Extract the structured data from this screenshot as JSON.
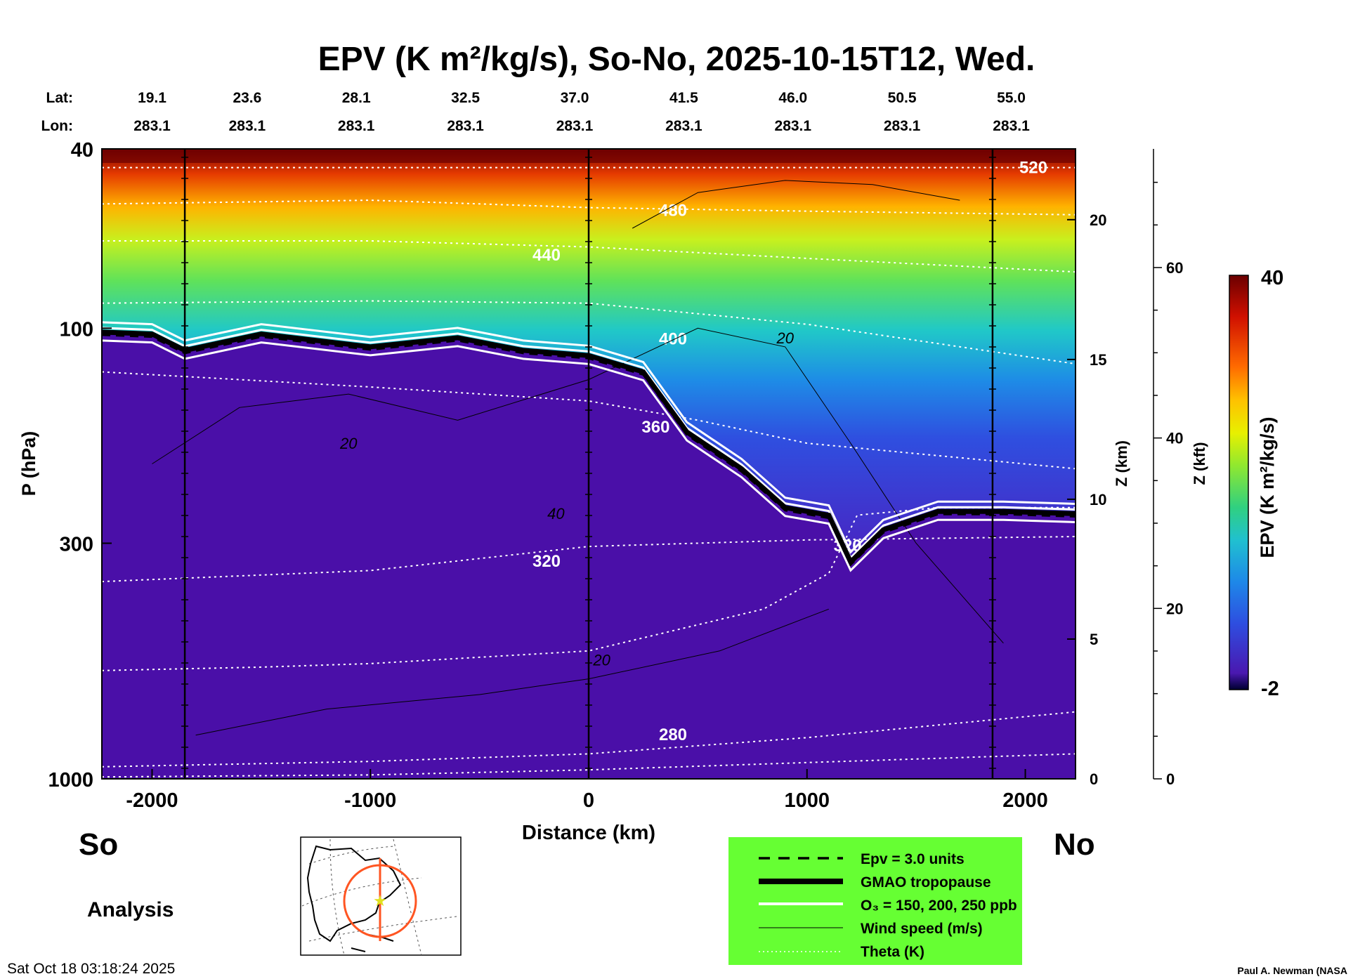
{
  "chart_data": {
    "type": "heatmap",
    "title": "EPV (K m²/kg/s), So-No, 2025-10-15T12, Wed.",
    "xlabel": "Distance (km)",
    "ylabel": "P (hPa)",
    "z_km_label": "Z (km)",
    "z_kft_label": "Z (kft)",
    "colorbar_label": "EPV (K m²/kg/s)",
    "xlim": [
      -2230,
      2230
    ],
    "ylim": [
      1000,
      40
    ],
    "x_ticks": [
      -2000,
      -1000,
      0,
      1000,
      2000
    ],
    "x_tick_labels": [
      "-2000",
      "-1000",
      "0",
      "1000",
      "2000"
    ],
    "p_ticks": [
      40,
      100,
      300,
      1000
    ],
    "p_tick_labels": [
      "40",
      "100",
      "300",
      "1000"
    ],
    "z_km_ticks": [
      0,
      5,
      10,
      15,
      20
    ],
    "z_km_tick_labels": [
      "0",
      "5",
      "10",
      "15",
      "20"
    ],
    "z_kft_ticks": [
      0,
      20,
      40,
      60
    ],
    "z_kft_tick_labels": [
      "0",
      "20",
      "40",
      "60"
    ],
    "colorbar_range": [
      -2,
      40
    ],
    "colorbar_tick_labels": [
      "40",
      "-2"
    ],
    "lat_label": "Lat:",
    "lon_label": "Lon:",
    "location_ticks": [
      {
        "lat": "19.1",
        "lon": "283.1"
      },
      {
        "lat": "23.6",
        "lon": "283.1"
      },
      {
        "lat": "28.1",
        "lon": "283.1"
      },
      {
        "lat": "32.5",
        "lon": "283.1"
      },
      {
        "lat": "37.0",
        "lon": "283.1"
      },
      {
        "lat": "41.5",
        "lon": "283.1"
      },
      {
        "lat": "46.0",
        "lon": "283.1"
      },
      {
        "lat": "50.5",
        "lon": "283.1"
      },
      {
        "lat": "55.0",
        "lon": "283.1"
      }
    ],
    "vertical_marker_lines_km": [
      -1850,
      0,
      1850
    ],
    "tropopause": {
      "x": [
        -2230,
        -2000,
        -1850,
        -1500,
        -1000,
        -600,
        -300,
        0,
        250,
        450,
        700,
        900,
        1100,
        1200,
        1350,
        1600,
        1900,
        2230
      ],
      "p": [
        102,
        103,
        112,
        103,
        110,
        105,
        112,
        115,
        125,
        170,
        205,
        250,
        260,
        330,
        280,
        255,
        255,
        258
      ]
    },
    "theta_isentropes": [
      {
        "label": "520",
        "x": [
          -2230,
          2230
        ],
        "p": [
          44,
          44
        ]
      },
      {
        "label": "480",
        "x": [
          -2230,
          -1000,
          0,
          1000,
          2230
        ],
        "p": [
          53,
          52,
          54,
          55,
          56
        ]
      },
      {
        "label": "440",
        "x": [
          -2230,
          -1000,
          0,
          1000,
          2230
        ],
        "p": [
          64,
          64,
          66,
          70,
          75
        ]
      },
      {
        "label": "400",
        "x": [
          -2230,
          -1000,
          0,
          1000,
          2230
        ],
        "p": [
          88,
          87,
          88,
          98,
          120
        ]
      },
      {
        "label": "360",
        "x": [
          -2230,
          -1000,
          0,
          500,
          1000,
          2230
        ],
        "p": [
          125,
          135,
          145,
          160,
          180,
          205
        ]
      },
      {
        "label": "320",
        "x": [
          -2230,
          -1500,
          -1000,
          0,
          800,
          1100,
          1230,
          1600,
          2230
        ],
        "p": [
          575,
          565,
          555,
          520,
          420,
          350,
          260,
          250,
          250
        ]
      },
      {
        "label": "320",
        "x": [
          -2230,
          -1000,
          0,
          1000,
          2230
        ],
        "p": [
          365,
          345,
          305,
          295,
          290
        ]
      },
      {
        "label": "280",
        "x": [
          -2230,
          -1000,
          0,
          1000,
          2230
        ],
        "p": [
          940,
          915,
          880,
          810,
          710
        ]
      },
      {
        "label": "",
        "x": [
          -2230,
          -1000,
          0,
          1000,
          2230
        ],
        "p": [
          990,
          980,
          955,
          920,
          880
        ]
      }
    ],
    "wind_contour_labels": [
      {
        "label": "20",
        "x": 900,
        "p": 108
      },
      {
        "label": "20",
        "x": -1100,
        "p": 185
      },
      {
        "label": "40",
        "x": -150,
        "p": 265
      },
      {
        "label": "20",
        "x": 60,
        "p": 560
      }
    ],
    "ozone_ppb": [
      150,
      200,
      250
    ],
    "epv_threshold_units": 3.0
  },
  "labels": {
    "south": "So",
    "north": "No",
    "analysis": "Analysis",
    "timestamp": "Sat Oct 18 03:18:24 2025",
    "credit": "Paul A. Newman (NASA"
  },
  "legend": {
    "bg_color": "#66ff33",
    "items": [
      {
        "label": "Epv = 3.0 units"
      },
      {
        "label": "GMAO tropopause"
      },
      {
        "label": "O₃ = 150, 200, 250 ppb"
      },
      {
        "label": "Wind speed (m/s)"
      },
      {
        "label": "Theta (K)"
      }
    ]
  },
  "colors": {
    "epv_low": "#4a0fa8",
    "epv_high": "#6b0000",
    "theta_line": "#ffffff",
    "map_track": "#ff5522"
  }
}
